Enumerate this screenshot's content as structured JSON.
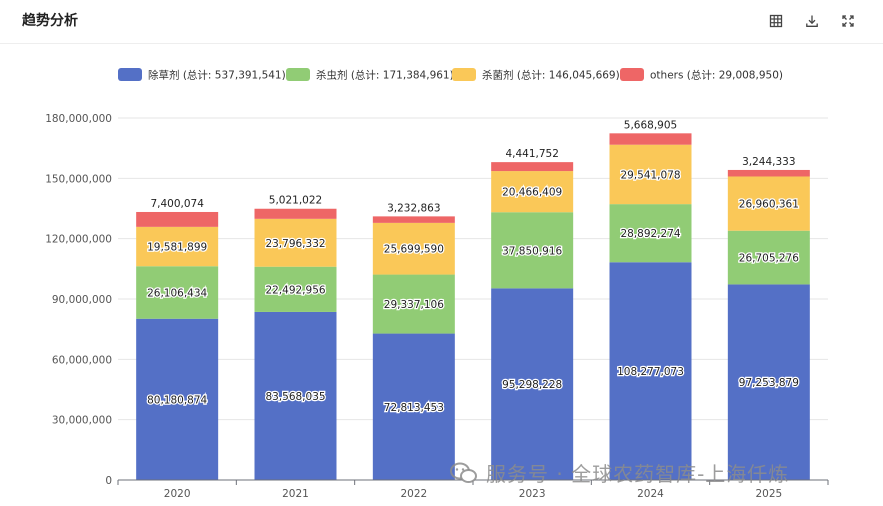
{
  "header": {
    "title": "趋势分析",
    "tools": [
      {
        "name": "table-view",
        "icon": "table-icon"
      },
      {
        "name": "download",
        "icon": "download-icon"
      },
      {
        "name": "fullscreen",
        "icon": "fullscreen-icon"
      }
    ]
  },
  "watermark": {
    "text": "服务号 · 全球农药智库-上海仟炼",
    "icon": "wechat-icon"
  },
  "chart_data": {
    "type": "bar",
    "stacked": true,
    "title": "",
    "xlabel": "",
    "ylabel": "",
    "categories": [
      "2020",
      "2021",
      "2022",
      "2023",
      "2024",
      "2025"
    ],
    "ylim": [
      0,
      180000000
    ],
    "yticks": [
      0,
      30000000,
      60000000,
      90000000,
      120000000,
      150000000,
      180000000
    ],
    "ytick_labels": [
      "0",
      "30,000,000",
      "60,000,000",
      "90,000,000",
      "120,000,000",
      "150,000,000",
      "180,000,000"
    ],
    "grid": true,
    "legend_position": "top-center",
    "series": [
      {
        "name": "除草剂",
        "legend_label": "除草剂 (总计: 537,391,541)",
        "color": "#5470c6",
        "values": [
          80180874,
          83568035,
          72813453,
          95298228,
          108277073,
          97253879
        ],
        "labels": [
          "80,180,874",
          "83,568,035",
          "72,813,453",
          "95,298,228",
          "108,277,073",
          "97,253,879"
        ]
      },
      {
        "name": "杀虫剂",
        "legend_label": "杀虫剂 (总计: 171,384,961)",
        "color": "#91cc75",
        "values": [
          26106434,
          22492956,
          29337106,
          37850916,
          28892274,
          26705276
        ],
        "labels": [
          "26,106,434",
          "22,492,956",
          "29,337,106",
          "37,850,916",
          "28,892,274",
          "26,705,276"
        ]
      },
      {
        "name": "杀菌剂",
        "legend_label": "杀菌剂 (总计: 146,045,669)",
        "color": "#fac858",
        "values": [
          19581899,
          23796332,
          25699590,
          20466409,
          29541078,
          26960361
        ],
        "labels": [
          "19,581,899",
          "23,796,332",
          "25,699,590",
          "20,466,409",
          "29,541,078",
          "26,960,361"
        ]
      },
      {
        "name": "others",
        "legend_label": "others (总计: 29,008,950)",
        "color": "#ee6666",
        "values": [
          7400074,
          5021022,
          3232863,
          4441752,
          5668905,
          3244333
        ],
        "labels": [
          "7,400,074",
          "5,021,022",
          "3,232,863",
          "4,441,752",
          "5,668,905",
          "3,244,333"
        ]
      }
    ]
  }
}
